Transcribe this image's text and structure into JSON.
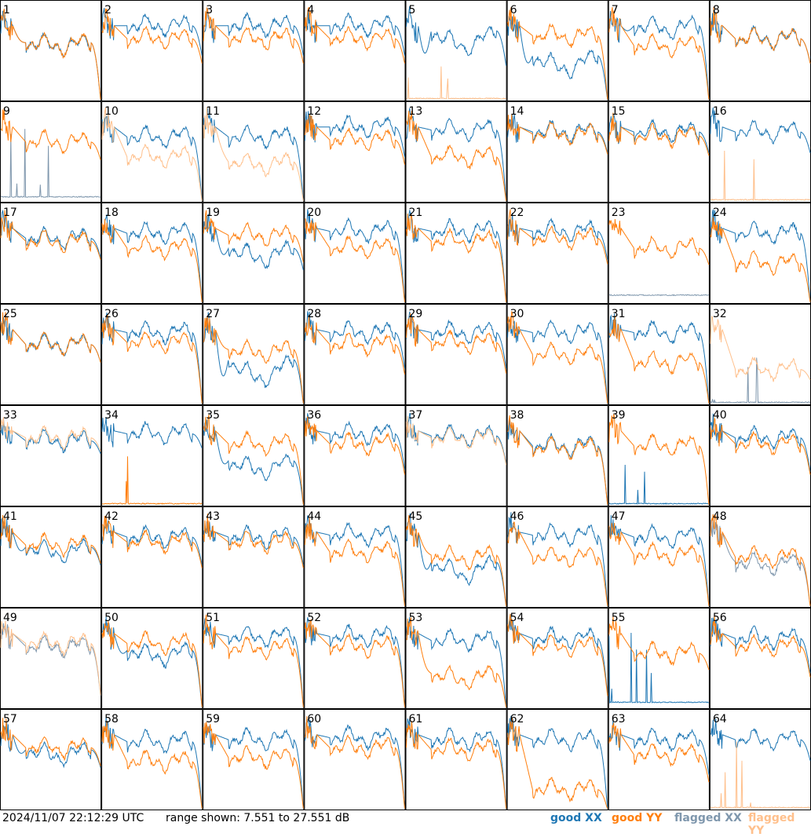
{
  "footer": {
    "timestamp": "2024/11/07 22:12:29 UTC",
    "range_text": "range shown: 7.551 to 27.551 dB",
    "legend": {
      "good_xx": "good XX",
      "good_yy": "good YY",
      "flagged_xx": "flagged XX",
      "flagged_yy": "flagged YY"
    }
  },
  "colors": {
    "good_xx": "#1f77b4",
    "good_yy": "#ff7f0e",
    "flagged_xx": "#7f97ad",
    "flagged_yy": "#ffc08c"
  },
  "chart_data": {
    "type": "line",
    "grid_rows": 8,
    "grid_cols": 8,
    "ylim": [
      7.551,
      27.551
    ],
    "units": "dB",
    "panels": [
      {
        "id": 1,
        "xx": "good",
        "yy": "good",
        "xx_level": 0.58,
        "yy_level": 0.58,
        "xx_dip": 0.05,
        "yy_dip": 0.05,
        "edge_drop": 1.0
      },
      {
        "id": 2,
        "xx": "good",
        "yy": "good",
        "xx_level": 0.75,
        "yy_level": 0.62,
        "xx_dip": 0.0,
        "yy_dip": 0.0,
        "edge_drop": 0.4
      },
      {
        "id": 3,
        "xx": "good",
        "yy": "good",
        "xx_level": 0.75,
        "yy_level": 0.62,
        "xx_dip": 0.0,
        "yy_dip": 0.0,
        "edge_drop": 0.4
      },
      {
        "id": 4,
        "xx": "good",
        "yy": "good",
        "xx_level": 0.75,
        "yy_level": 0.62,
        "xx_dip": 0.0,
        "yy_dip": 0.0,
        "edge_drop": 0.4
      },
      {
        "id": 5,
        "xx": "good",
        "yy": "flagged",
        "xx_level": 0.7,
        "yy_level": 0.02,
        "xx_dip": 0.25,
        "yy_dip": 0.0,
        "edge_drop": 0.5
      },
      {
        "id": 6,
        "xx": "good",
        "yy": "good",
        "xx_level": 0.45,
        "yy_level": 0.65,
        "xx_dip": 0.2,
        "yy_dip": 0.0,
        "edge_drop": 1.0
      },
      {
        "id": 7,
        "xx": "good",
        "yy": "good",
        "xx_level": 0.75,
        "yy_level": 0.55,
        "xx_dip": 0.05,
        "yy_dip": 0.0,
        "edge_drop": 1.0
      },
      {
        "id": 8,
        "xx": "good",
        "yy": "good",
        "xx_level": 0.62,
        "yy_level": 0.62,
        "xx_dip": 0.0,
        "yy_dip": 0.0,
        "edge_drop": 0.4
      },
      {
        "id": 9,
        "xx": "flagged",
        "yy": "good",
        "xx_level": 0.05,
        "yy_level": 0.6,
        "xx_dip": 0.0,
        "yy_dip": 0.0,
        "edge_drop": 0.3
      },
      {
        "id": 10,
        "xx": "good",
        "yy": "flagged",
        "xx_level": 0.65,
        "yy_level": 0.45,
        "xx_dip": 0.0,
        "yy_dip": 0.0,
        "edge_drop": 1.0
      },
      {
        "id": 11,
        "xx": "good",
        "yy": "flagged",
        "xx_level": 0.65,
        "yy_level": 0.4,
        "xx_dip": 0.0,
        "yy_dip": 0.05,
        "edge_drop": 1.0
      },
      {
        "id": 12,
        "xx": "good",
        "yy": "good",
        "xx_level": 0.75,
        "yy_level": 0.62,
        "xx_dip": 0.0,
        "yy_dip": 0.0,
        "edge_drop": 0.4
      },
      {
        "id": 13,
        "xx": "good",
        "yy": "good",
        "xx_level": 0.72,
        "yy_level": 0.45,
        "xx_dip": 0.0,
        "yy_dip": 0.0,
        "edge_drop": 1.0
      },
      {
        "id": 14,
        "xx": "good",
        "yy": "good",
        "xx_level": 0.7,
        "yy_level": 0.68,
        "xx_dip": 0.0,
        "yy_dip": 0.0,
        "edge_drop": 0.3
      },
      {
        "id": 15,
        "xx": "good",
        "yy": "good",
        "xx_level": 0.7,
        "yy_level": 0.66,
        "xx_dip": 0.0,
        "yy_dip": 0.0,
        "edge_drop": 0.3
      },
      {
        "id": 16,
        "xx": "good",
        "yy": "flagged",
        "xx_level": 0.7,
        "yy_level": 0.02,
        "xx_dip": 0.0,
        "yy_dip": 0.0,
        "edge_drop": 0.3
      },
      {
        "id": 17,
        "xx": "good",
        "yy": "good",
        "xx_level": 0.65,
        "yy_level": 0.62,
        "xx_dip": 0.0,
        "yy_dip": 0.0,
        "edge_drop": 0.3
      },
      {
        "id": 18,
        "xx": "good",
        "yy": "good",
        "xx_level": 0.7,
        "yy_level": 0.55,
        "xx_dip": 0.0,
        "yy_dip": 0.0,
        "edge_drop": 1.0
      },
      {
        "id": 19,
        "xx": "good",
        "yy": "good",
        "xx_level": 0.55,
        "yy_level": 0.68,
        "xx_dip": 0.15,
        "yy_dip": 0.0,
        "edge_drop": 0.4
      },
      {
        "id": 20,
        "xx": "good",
        "yy": "good",
        "xx_level": 0.72,
        "yy_level": 0.55,
        "xx_dip": 0.0,
        "yy_dip": 0.0,
        "edge_drop": 1.0
      },
      {
        "id": 21,
        "xx": "good",
        "yy": "good",
        "xx_level": 0.72,
        "yy_level": 0.62,
        "xx_dip": 0.0,
        "yy_dip": 0.0,
        "edge_drop": 1.0
      },
      {
        "id": 22,
        "xx": "good",
        "yy": "good",
        "xx_level": 0.72,
        "yy_level": 0.65,
        "xx_dip": 0.0,
        "yy_dip": 0.0,
        "edge_drop": 0.4
      },
      {
        "id": 23,
        "xx": "flagged",
        "yy": "good",
        "xx_level": 0.08,
        "yy_level": 0.55,
        "xx_dip": 0.0,
        "yy_dip": 0.0,
        "edge_drop": 0.3
      },
      {
        "id": 24,
        "xx": "good",
        "yy": "good",
        "xx_level": 0.7,
        "yy_level": 0.4,
        "xx_dip": 0.0,
        "yy_dip": 0.0,
        "edge_drop": 1.0
      },
      {
        "id": 25,
        "xx": "good",
        "yy": "good",
        "xx_level": 0.6,
        "yy_level": 0.6,
        "xx_dip": 0.0,
        "yy_dip": 0.0,
        "edge_drop": 0.3
      },
      {
        "id": 26,
        "xx": "good",
        "yy": "good",
        "xx_level": 0.72,
        "yy_level": 0.62,
        "xx_dip": 0.0,
        "yy_dip": 0.0,
        "edge_drop": 1.0
      },
      {
        "id": 27,
        "xx": "good",
        "yy": "good",
        "xx_level": 0.45,
        "yy_level": 0.55,
        "xx_dip": 0.3,
        "yy_dip": 0.05,
        "edge_drop": 1.0
      },
      {
        "id": 28,
        "xx": "good",
        "yy": "good",
        "xx_level": 0.72,
        "yy_level": 0.6,
        "xx_dip": 0.0,
        "yy_dip": 0.0,
        "edge_drop": 0.5
      },
      {
        "id": 29,
        "xx": "good",
        "yy": "good",
        "xx_level": 0.72,
        "yy_level": 0.62,
        "xx_dip": 0.0,
        "yy_dip": 0.0,
        "edge_drop": 0.5
      },
      {
        "id": 30,
        "xx": "good",
        "yy": "good",
        "xx_level": 0.72,
        "yy_level": 0.5,
        "xx_dip": 0.0,
        "yy_dip": 0.0,
        "edge_drop": 1.0
      },
      {
        "id": 31,
        "xx": "good",
        "yy": "good",
        "xx_level": 0.72,
        "yy_level": 0.42,
        "xx_dip": 0.0,
        "yy_dip": 0.0,
        "edge_drop": 1.0
      },
      {
        "id": 32,
        "xx": "flagged",
        "yy": "flagged",
        "xx_level": 0.02,
        "yy_level": 0.35,
        "xx_dip": 0.0,
        "yy_dip": 0.0,
        "edge_drop": 0.3
      },
      {
        "id": 33,
        "xx": "good",
        "yy": "flagged",
        "xx_level": 0.65,
        "yy_level": 0.68,
        "xx_dip": 0.0,
        "yy_dip": 0.0,
        "edge_drop": 0.2
      },
      {
        "id": 34,
        "xx": "good",
        "yy": "good",
        "xx_level": 0.72,
        "yy_level": 0.02,
        "xx_dip": 0.0,
        "yy_dip": 0.0,
        "edge_drop": 0.2
      },
      {
        "id": 35,
        "xx": "good",
        "yy": "good",
        "xx_level": 0.45,
        "yy_level": 0.62,
        "xx_dip": 0.15,
        "yy_dip": 0.0,
        "edge_drop": 1.0
      },
      {
        "id": 36,
        "xx": "good",
        "yy": "good",
        "xx_level": 0.72,
        "yy_level": 0.62,
        "xx_dip": 0.0,
        "yy_dip": 0.0,
        "edge_drop": 0.5
      },
      {
        "id": 37,
        "xx": "good",
        "yy": "flagged",
        "xx_level": 0.7,
        "yy_level": 0.68,
        "xx_dip": 0.0,
        "yy_dip": 0.0,
        "edge_drop": 0.4
      },
      {
        "id": 38,
        "xx": "good",
        "yy": "good",
        "xx_level": 0.6,
        "yy_level": 0.58,
        "xx_dip": 0.0,
        "yy_dip": 0.0,
        "edge_drop": 1.0
      },
      {
        "id": 39,
        "xx": "good",
        "yy": "good",
        "xx_level": 0.02,
        "yy_level": 0.6,
        "xx_dip": 0.0,
        "yy_dip": 0.0,
        "edge_drop": 1.0
      },
      {
        "id": 40,
        "xx": "good",
        "yy": "good",
        "xx_level": 0.68,
        "yy_level": 0.62,
        "xx_dip": 0.0,
        "yy_dip": 0.0,
        "edge_drop": 0.5
      },
      {
        "id": 41,
        "xx": "good",
        "yy": "good",
        "xx_level": 0.6,
        "yy_level": 0.62,
        "xx_dip": 0.1,
        "yy_dip": 0.0,
        "edge_drop": 0.3
      },
      {
        "id": 42,
        "xx": "good",
        "yy": "good",
        "xx_level": 0.7,
        "yy_level": 0.65,
        "xx_dip": 0.0,
        "yy_dip": 0.0,
        "edge_drop": 0.4
      },
      {
        "id": 43,
        "xx": "good",
        "yy": "good",
        "xx_level": 0.7,
        "yy_level": 0.65,
        "xx_dip": 0.0,
        "yy_dip": 0.0,
        "edge_drop": 0.4
      },
      {
        "id": 44,
        "xx": "good",
        "yy": "good",
        "xx_level": 0.72,
        "yy_level": 0.55,
        "xx_dip": 0.0,
        "yy_dip": 0.0,
        "edge_drop": 1.0
      },
      {
        "id": 45,
        "xx": "good",
        "yy": "good",
        "xx_level": 0.45,
        "yy_level": 0.52,
        "xx_dip": 0.2,
        "yy_dip": 0.05,
        "edge_drop": 1.0
      },
      {
        "id": 46,
        "xx": "good",
        "yy": "good",
        "xx_level": 0.72,
        "yy_level": 0.5,
        "xx_dip": 0.0,
        "yy_dip": 0.0,
        "edge_drop": 1.0
      },
      {
        "id": 47,
        "xx": "good",
        "yy": "good",
        "xx_level": 0.7,
        "yy_level": 0.52,
        "xx_dip": 0.0,
        "yy_dip": 0.0,
        "edge_drop": 1.0
      },
      {
        "id": 48,
        "xx": "flagged",
        "yy": "good",
        "xx_level": 0.45,
        "yy_level": 0.5,
        "xx_dip": 0.05,
        "yy_dip": 0.0,
        "edge_drop": 1.0
      },
      {
        "id": 49,
        "xx": "flagged",
        "yy": "flagged",
        "xx_level": 0.62,
        "yy_level": 0.65,
        "xx_dip": 0.0,
        "yy_dip": 0.0,
        "edge_drop": 0.8
      },
      {
        "id": 50,
        "xx": "good",
        "yy": "good",
        "xx_level": 0.58,
        "yy_level": 0.65,
        "xx_dip": 0.1,
        "yy_dip": 0.0,
        "edge_drop": 1.0
      },
      {
        "id": 51,
        "xx": "good",
        "yy": "good",
        "xx_level": 0.72,
        "yy_level": 0.6,
        "xx_dip": 0.0,
        "yy_dip": 0.0,
        "edge_drop": 1.0
      },
      {
        "id": 52,
        "xx": "good",
        "yy": "good",
        "xx_level": 0.72,
        "yy_level": 0.62,
        "xx_dip": 0.0,
        "yy_dip": 0.0,
        "edge_drop": 1.0
      },
      {
        "id": 53,
        "xx": "good",
        "yy": "good",
        "xx_level": 0.68,
        "yy_level": 0.35,
        "xx_dip": 0.0,
        "yy_dip": 0.1,
        "edge_drop": 1.0
      },
      {
        "id": 54,
        "xx": "good",
        "yy": "good",
        "xx_level": 0.7,
        "yy_level": 0.62,
        "xx_dip": 0.0,
        "yy_dip": 0.0,
        "edge_drop": 0.8
      },
      {
        "id": 55,
        "xx": "good",
        "yy": "good",
        "xx_level": 0.06,
        "yy_level": 0.55,
        "xx_dip": 0.0,
        "yy_dip": 0.0,
        "edge_drop": 0.3
      },
      {
        "id": 56,
        "xx": "good",
        "yy": "good",
        "xx_level": 0.7,
        "yy_level": 0.62,
        "xx_dip": 0.0,
        "yy_dip": 0.0,
        "edge_drop": 0.5
      },
      {
        "id": 57,
        "xx": "good",
        "yy": "good",
        "xx_level": 0.6,
        "yy_level": 0.62,
        "xx_dip": 0.1,
        "yy_dip": 0.0,
        "edge_drop": 0.3
      },
      {
        "id": 58,
        "xx": "good",
        "yy": "good",
        "xx_level": 0.68,
        "yy_level": 0.48,
        "xx_dip": 0.0,
        "yy_dip": 0.0,
        "edge_drop": 1.0
      },
      {
        "id": 59,
        "xx": "good",
        "yy": "good",
        "xx_level": 0.7,
        "yy_level": 0.52,
        "xx_dip": 0.0,
        "yy_dip": 0.0,
        "edge_drop": 1.0
      },
      {
        "id": 60,
        "xx": "good",
        "yy": "good",
        "xx_level": 0.72,
        "yy_level": 0.62,
        "xx_dip": 0.0,
        "yy_dip": 0.0,
        "edge_drop": 1.0
      },
      {
        "id": 61,
        "xx": "good",
        "yy": "good",
        "xx_level": 0.7,
        "yy_level": 0.6,
        "xx_dip": 0.0,
        "yy_dip": 0.0,
        "edge_drop": 1.0
      },
      {
        "id": 62,
        "xx": "good",
        "yy": "good",
        "xx_level": 0.7,
        "yy_level": 0.2,
        "xx_dip": 0.0,
        "yy_dip": 0.0,
        "edge_drop": 1.0
      },
      {
        "id": 63,
        "xx": "good",
        "yy": "good",
        "xx_level": 0.7,
        "yy_level": 0.55,
        "xx_dip": 0.0,
        "yy_dip": 0.0,
        "edge_drop": 0.5
      },
      {
        "id": 64,
        "xx": "good",
        "yy": "flagged",
        "xx_level": 0.7,
        "yy_level": 0.02,
        "xx_dip": 0.0,
        "yy_dip": 0.0,
        "edge_drop": 0.3
      }
    ]
  }
}
